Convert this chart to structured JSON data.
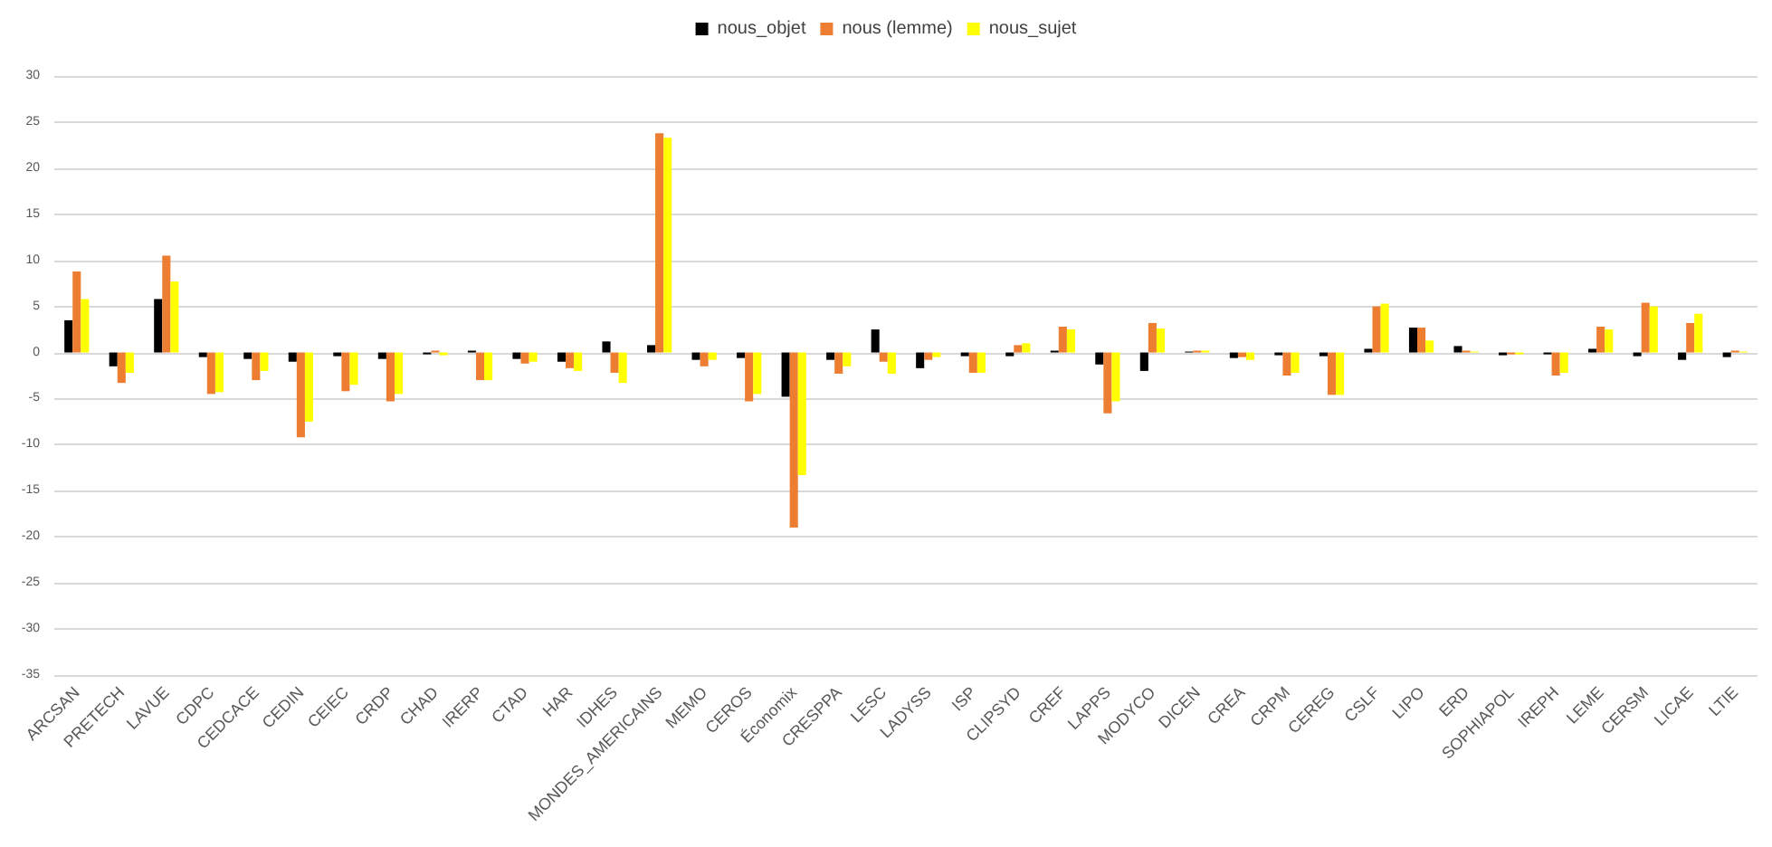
{
  "chart_data": {
    "type": "bar",
    "categories": [
      "ARCSAN",
      "PRETECH",
      "LAVUE",
      "CDPC",
      "CEDCACE",
      "CEDIN",
      "CEIEC",
      "CRDP",
      "CHAD",
      "IRERP",
      "CTAD",
      "HAR",
      "IDHES",
      "MONDES_AMERICAINS",
      "MEMO",
      "CEROS",
      "Économix",
      "CRESPPA",
      "LESC",
      "LADYSS",
      "ISP",
      "CLIPSYD",
      "CREF",
      "LAPPS",
      "MODYCO",
      "DICEN",
      "CREA",
      "CRPM",
      "CEREG",
      "CSLF",
      "LIPO",
      "ERD",
      "SOPHIAPOL",
      "IREPH",
      "LEME",
      "CERSM",
      "LICAE",
      "LTIE"
    ],
    "series": [
      {
        "name": "nous_objet",
        "color": "#000000",
        "values": [
          3.5,
          -1.5,
          5.8,
          -0.5,
          -0.7,
          -1.0,
          -0.4,
          -0.7,
          -0.2,
          0.2,
          -0.7,
          -1.0,
          1.2,
          0.8,
          -0.8,
          -0.6,
          -4.8,
          -0.8,
          2.5,
          -1.7,
          -0.4,
          -0.4,
          0.2,
          -1.3,
          -2.0,
          0.1,
          -0.6,
          -0.3,
          -0.4,
          0.4,
          2.7,
          0.7,
          -0.3,
          -0.2,
          0.4,
          -0.4,
          -0.8,
          -0.5
        ]
      },
      {
        "name": "nous (lemme)",
        "color": "#ed7d31",
        "values": [
          8.8,
          -3.3,
          10.5,
          -4.5,
          -3.0,
          -9.2,
          -4.2,
          -5.3,
          0.2,
          -3.0,
          -1.2,
          -1.7,
          -2.2,
          23.8,
          -1.5,
          -5.3,
          -19.0,
          -2.3,
          -1.0,
          -0.8,
          -2.2,
          0.8,
          2.8,
          -6.6,
          3.2,
          0.2,
          -0.5,
          -2.5,
          -4.6,
          5.0,
          2.7,
          0.2,
          -0.2,
          -2.5,
          2.8,
          5.4,
          3.2,
          0.2
        ]
      },
      {
        "name": "nous_sujet",
        "color": "#ffff00",
        "values": [
          5.8,
          -2.2,
          7.7,
          -4.3,
          -2.0,
          -7.5,
          -3.5,
          -4.5,
          -0.3,
          -3.0,
          -1.0,
          -2.0,
          -3.3,
          23.3,
          -0.8,
          -4.5,
          -13.3,
          -1.5,
          -2.3,
          -0.5,
          -2.2,
          1.0,
          2.5,
          -5.3,
          2.6,
          0.2,
          -0.8,
          -2.2,
          -4.6,
          5.3,
          1.3,
          0.1,
          -0.2,
          -2.2,
          2.5,
          5.0,
          4.2,
          0.1
        ]
      }
    ],
    "ylim": [
      -35,
      30
    ],
    "yticks": [
      -35,
      -30,
      -25,
      -20,
      -15,
      -10,
      -5,
      0,
      5,
      10,
      15,
      20,
      25,
      30
    ],
    "grid": "y",
    "legend": "top"
  }
}
